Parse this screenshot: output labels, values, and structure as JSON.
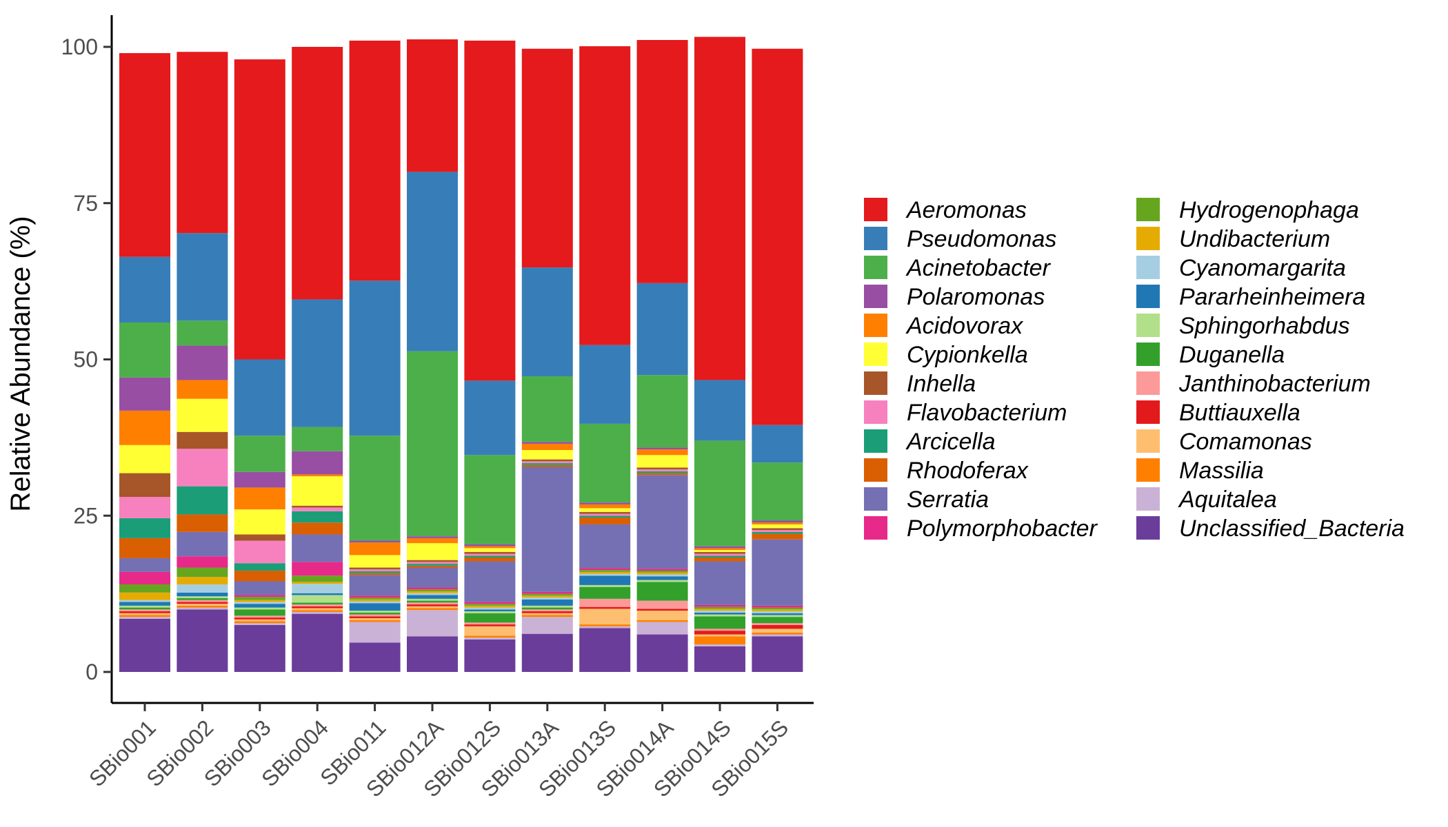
{
  "chart_data": {
    "type": "bar",
    "stacked": true,
    "ylabel": "Relative Abundance (%)",
    "xlabel": "",
    "ylim": [
      0,
      100
    ],
    "yticks": [
      0,
      25,
      50,
      75,
      100
    ],
    "grid": false,
    "legend_position": "right",
    "categories": [
      "SBio001",
      "SBio002",
      "SBio003",
      "SBio004",
      "SBio011",
      "SBio012A",
      "SBio012S",
      "SBio013A",
      "SBio013S",
      "SBio014A",
      "SBio014S",
      "SBio015S"
    ],
    "series": [
      {
        "name": "Unclassified_Bacteria",
        "color": "#6A3D9A",
        "values": [
          8.5,
          10,
          7.5,
          9.3,
          4.7,
          5.7,
          5.2,
          6.1,
          7.0,
          6.0,
          4.1,
          5.7
        ]
      },
      {
        "name": "Aquitalea",
        "color": "#CAB2D6",
        "values": [
          0.3,
          0.3,
          0.3,
          0.3,
          3.3,
          4.2,
          0.3,
          2.7,
          0.3,
          2.0,
          0.3,
          0.3
        ]
      },
      {
        "name": "Massilia",
        "color": "#FF7F00",
        "values": [
          0.3,
          0.3,
          0.3,
          0.3,
          0.3,
          0.3,
          0.3,
          0.3,
          0.3,
          0.3,
          1.3,
          0.3
        ]
      },
      {
        "name": "Comamonas",
        "color": "#FDBF6F",
        "values": [
          0.3,
          0.3,
          0.3,
          0.3,
          0.3,
          0.3,
          1.5,
          0.3,
          2.5,
          1.5,
          0.3,
          0.6
        ]
      },
      {
        "name": "Buttiauxella",
        "color": "#E31A1C",
        "values": [
          0.3,
          0.3,
          0.3,
          0.3,
          0.3,
          0.3,
          0.3,
          0.3,
          0.3,
          0.3,
          0.6,
          0.6
        ]
      },
      {
        "name": "Janthinobacterium",
        "color": "#FB9A99",
        "values": [
          0.3,
          0.3,
          0.3,
          0.3,
          0.3,
          0.3,
          0.3,
          0.3,
          1.3,
          1.3,
          0.3,
          0.3
        ]
      },
      {
        "name": "Duganella",
        "color": "#33A02C",
        "values": [
          0.3,
          0.3,
          1.0,
          0.3,
          0.3,
          0.3,
          1.5,
          0.3,
          1.9,
          3.0,
          2.0,
          1.0
        ]
      },
      {
        "name": "Sphingorhabdus",
        "color": "#B2DF8A",
        "values": [
          0.3,
          0.3,
          0.3,
          1.2,
          0.3,
          0.3,
          0.3,
          0.3,
          0.3,
          0.3,
          0.3,
          0.3
        ]
      },
      {
        "name": "Pararheinheimera",
        "color": "#1F78B4",
        "values": [
          0.6,
          0.6,
          0.6,
          0.3,
          1.2,
          0.6,
          0.3,
          1.0,
          1.5,
          0.6,
          0.3,
          0.3
        ]
      },
      {
        "name": "Cyanomargarita",
        "color": "#A6CEE3",
        "values": [
          0.3,
          1.3,
          0.3,
          1.5,
          0.3,
          0.3,
          0.3,
          0.3,
          0.3,
          0.3,
          0.3,
          0.3
        ]
      },
      {
        "name": "Undibacterium",
        "color": "#E6AB02",
        "values": [
          1.2,
          1.2,
          0.3,
          0.3,
          0.3,
          0.3,
          0.3,
          0.3,
          0.3,
          0.3,
          0.3,
          0.3
        ]
      },
      {
        "name": "Hydrogenophaga",
        "color": "#66A61E",
        "values": [
          1.3,
          1.5,
          0.5,
          1.0,
          0.3,
          0.3,
          0.3,
          0.3,
          0.3,
          0.3,
          0.3,
          0.3
        ]
      },
      {
        "name": "Polymorphobacter",
        "color": "#E7298A",
        "values": [
          2.0,
          1.8,
          0.3,
          2.2,
          0.3,
          0.3,
          0.3,
          0.3,
          0.3,
          0.3,
          0.3,
          0.3
        ]
      },
      {
        "name": "Serratia",
        "color": "#7570B3",
        "values": [
          2.2,
          3.9,
          2.2,
          4.4,
          3.3,
          3.2,
          6.5,
          20.0,
          7.0,
          15.0,
          7.0,
          10.6
        ]
      },
      {
        "name": "Rhodoferax",
        "color": "#D95F02",
        "values": [
          3.2,
          2.8,
          1.7,
          1.9,
          0.3,
          0.3,
          0.6,
          0.3,
          1.1,
          0.3,
          0.6,
          0.9
        ]
      },
      {
        "name": "Arcicella",
        "color": "#1B9E77",
        "values": [
          3.2,
          4.5,
          1.2,
          1.8,
          0.3,
          0.3,
          0.3,
          0.3,
          0.3,
          0.3,
          0.3,
          0.3
        ]
      },
      {
        "name": "Flavobacterium",
        "color": "#F781BF",
        "values": [
          3.4,
          6.0,
          3.6,
          0.6,
          0.3,
          0.3,
          0.3,
          0.3,
          0.3,
          0.3,
          0.3,
          0.3
        ]
      },
      {
        "name": "Inhella",
        "color": "#A65628",
        "values": [
          3.8,
          2.7,
          1.0,
          0.3,
          0.3,
          0.3,
          0.3,
          0.3,
          0.3,
          0.3,
          0.3,
          0.3
        ]
      },
      {
        "name": "Cypionkella",
        "color": "#FFFF33",
        "values": [
          4.5,
          5.3,
          4.0,
          4.7,
          2.0,
          2.7,
          0.6,
          1.5,
          0.6,
          2.0,
          0.3,
          0.6
        ]
      },
      {
        "name": "Acidovorax",
        "color": "#FF7F00",
        "values": [
          5.5,
          3.0,
          3.5,
          0.3,
          2.0,
          0.8,
          0.3,
          1.0,
          0.6,
          0.9,
          0.3,
          0.3
        ]
      },
      {
        "name": "Polaromonas",
        "color": "#984EA3",
        "values": [
          5.3,
          5.5,
          2.5,
          3.7,
          0.3,
          0.3,
          0.3,
          0.3,
          0.3,
          0.3,
          0.3,
          0.3
        ]
      },
      {
        "name": "Acinetobacter",
        "color": "#4DAF4A",
        "values": [
          8.8,
          4.0,
          5.8,
          3.9,
          16.8,
          29.6,
          14.3,
          10.5,
          12.6,
          11.6,
          16.9,
          9.3
        ]
      },
      {
        "name": "Pseudomonas",
        "color": "#377EB8",
        "values": [
          10.5,
          14.0,
          12.2,
          20.4,
          24.8,
          28.7,
          11.9,
          17.4,
          12.6,
          14.7,
          9.7,
          6.0
        ]
      },
      {
        "name": "Aeromonas",
        "color": "#E41A1C",
        "values": [
          32.6,
          29.0,
          48.0,
          40.4,
          38.4,
          21.2,
          54.4,
          35.0,
          47.8,
          38.9,
          54.9,
          60.2
        ]
      }
    ],
    "legend_order": [
      "Aeromonas",
      "Pseudomonas",
      "Acinetobacter",
      "Polaromonas",
      "Acidovorax",
      "Cypionkella",
      "Inhella",
      "Flavobacterium",
      "Arcicella",
      "Rhodoferax",
      "Serratia",
      "Polymorphobacter",
      "Hydrogenophaga",
      "Undibacterium",
      "Cyanomargarita",
      "Pararheinheimera",
      "Sphingorhabdus",
      "Duganella",
      "Janthinobacterium",
      "Buttiauxella",
      "Comamonas",
      "Massilia",
      "Aquitalea",
      "Unclassified_Bacteria"
    ]
  }
}
